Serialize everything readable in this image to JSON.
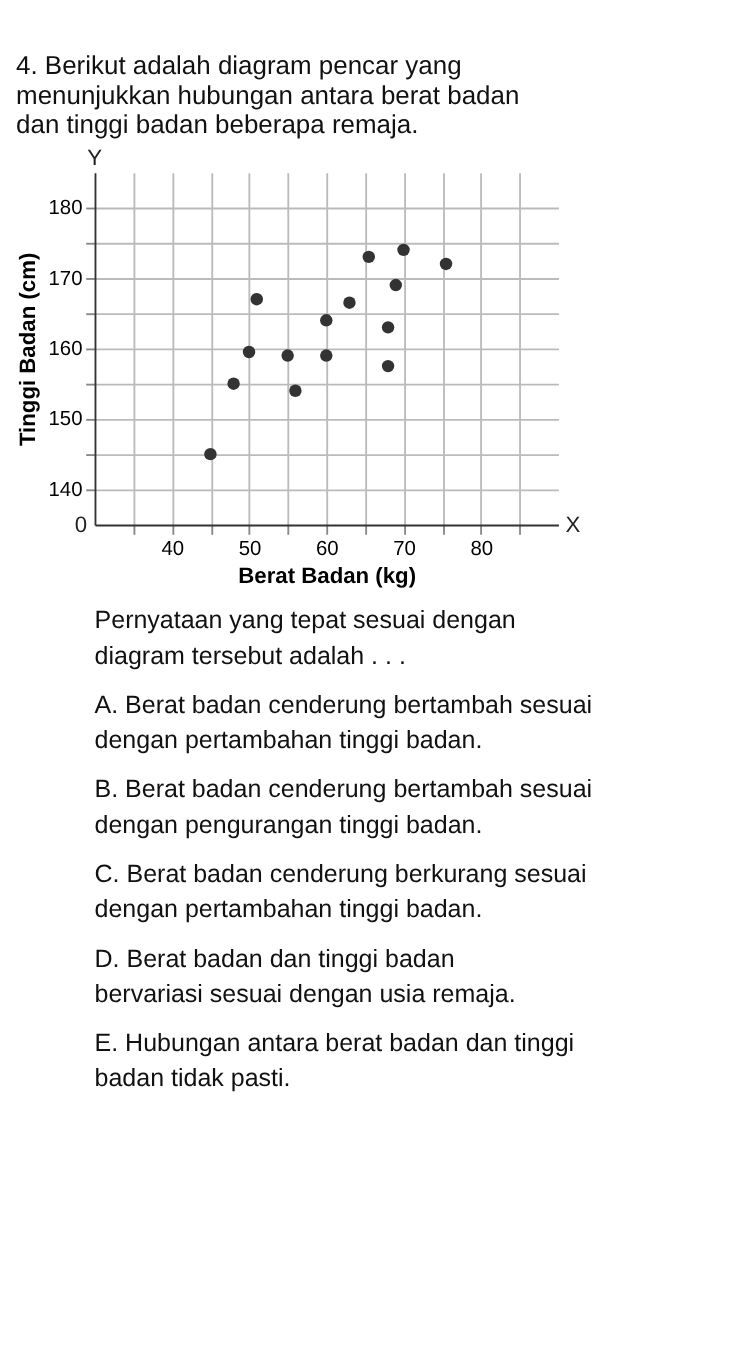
{
  "chart_data": {
    "type": "scatter",
    "title": "4. Berikut adalah diagram pencar yang menunjukkan hubungan antara berat badan dan tinggi badan beberapa remaja.",
    "xlabel": "Berat Badan (kg)",
    "ylabel": "Tinggi Badan (cm)",
    "x": [
      45,
      48,
      50,
      51,
      55,
      56,
      60,
      60,
      63,
      65.5,
      68,
      68,
      69,
      70,
      75.5
    ],
    "series": [
      {
        "color": "#333333",
        "values": [
          145,
          155,
          159.5,
          167,
          159,
          154,
          164,
          159,
          166.5,
          173,
          163,
          157.5,
          169,
          174,
          172
        ]
      }
    ],
    "marker": "circle",
    "xlim": [
      30,
      90
    ],
    "xticks": [
      {
        "value": 35,
        "label": null
      },
      40,
      {
        "value": 45,
        "label": null
      },
      50,
      {
        "value": 55,
        "label": null
      },
      60,
      {
        "value": 65,
        "label": null
      },
      70,
      {
        "value": 75,
        "label": null
      },
      80,
      {
        "value": 85,
        "label": null
      }
    ],
    "ylim": [
      135,
      185
    ],
    "yticks": [
      140,
      {
        "value": 145,
        "label": null
      },
      150,
      {
        "value": 155,
        "label": null
      },
      160,
      {
        "value": 165,
        "label": null
      },
      170,
      {
        "value": 175,
        "label": null
      },
      180
    ],
    "grid": true,
    "annotations": [
      "Y",
      "X",
      "0",
      "Pernyataan yang tepat sesuai dengan diagram tersebut adalah . . .",
      "A.  Berat badan cenderung bertambah sesuai dengan pertambahan tinggi badan.",
      "B.  Berat badan cenderung bertambah sesuai dengan pengurangan tinggi badan.",
      "C.  Berat badan cenderung berkurang sesuai dengan pertambahan tinggi badan.",
      "D.  Berat badan dan tinggi badan bervariasi sesuai dengan usia remaja.",
      "E.  Hubungan antara berat badan dan tinggi badan tidak pasti."
    ]
  }
}
